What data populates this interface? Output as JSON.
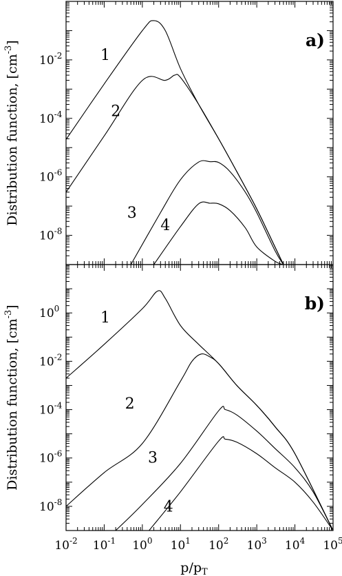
{
  "chart_data": [
    {
      "type": "line",
      "panel_label": "a)",
      "ylabel": "Distribution function, [cm",
      "ylabel_exp": "-3",
      "xscale": "log",
      "yscale": "log",
      "xlim": [
        0.01,
        100000
      ],
      "ylim": [
        1e-09,
        1
      ],
      "ytick_labels": [
        {
          "value": 0.01,
          "base": "10",
          "exp": "-2"
        },
        {
          "value": 0.0001,
          "base": "10",
          "exp": "-4"
        },
        {
          "value": 1e-06,
          "base": "10",
          "exp": "-6"
        },
        {
          "value": 1e-08,
          "base": "10",
          "exp": "-8"
        }
      ],
      "series": [
        {
          "name": "1",
          "points": [
            [
              0.01,
              1.9e-05
            ],
            [
              0.1,
              0.0015
            ],
            [
              1,
              0.1
            ],
            [
              2,
              0.22
            ],
            [
              4,
              0.1
            ],
            [
              10,
              0.005
            ],
            [
              30,
              0.0003
            ],
            [
              100,
              2e-05
            ],
            [
              300,
              1.5e-06
            ],
            [
              1000,
              8e-08
            ],
            [
              3000,
              4e-09
            ],
            [
              5000,
              1e-09
            ]
          ]
        },
        {
          "name": "2",
          "points": [
            [
              0.01,
              3e-07
            ],
            [
              0.1,
              2.5e-05
            ],
            [
              1,
              0.002
            ],
            [
              4,
              0.002
            ],
            [
              7,
              0.003
            ],
            [
              10,
              0.0025
            ],
            [
              30,
              0.0003
            ],
            [
              100,
              2e-05
            ],
            [
              300,
              1.5e-06
            ],
            [
              1000,
              8e-08
            ],
            [
              3000,
              4e-09
            ],
            [
              5000,
              1e-09
            ]
          ]
        },
        {
          "name": "3",
          "points": [
            [
              0.5,
              1e-09
            ],
            [
              3,
              6e-08
            ],
            [
              10,
              8e-07
            ],
            [
              30,
              3.2e-06
            ],
            [
              60,
              3.3e-06
            ],
            [
              100,
              3.1e-06
            ],
            [
              200,
              1.5e-06
            ],
            [
              500,
              3e-07
            ],
            [
              1000,
              6e-08
            ],
            [
              3000,
              3e-09
            ],
            [
              5000,
              1e-09
            ]
          ]
        },
        {
          "name": "4",
          "points": [
            [
              2,
              1e-09
            ],
            [
              10,
              2e-08
            ],
            [
              30,
              1.2e-07
            ],
            [
              60,
              1.25e-07
            ],
            [
              100,
              1.2e-07
            ],
            [
              200,
              7e-08
            ],
            [
              500,
              1.8e-08
            ],
            [
              1000,
              4e-09
            ],
            [
              3000,
              1.3e-09
            ],
            [
              5000,
              1e-09
            ]
          ]
        }
      ],
      "curve_labels": [
        {
          "name": "1",
          "x": 0.08,
          "y": 0.01
        },
        {
          "name": "2",
          "x": 0.15,
          "y": 0.00012
        },
        {
          "name": "3",
          "x": 0.4,
          "y": 4e-08
        },
        {
          "name": "4",
          "x": 3,
          "y": 1.5e-08
        }
      ]
    },
    {
      "type": "line",
      "panel_label": "b)",
      "ylabel": "Distribution function, [cm",
      "ylabel_exp": "-3",
      "xscale": "log",
      "yscale": "log",
      "xlim": [
        0.01,
        100000
      ],
      "ylim": [
        1e-09,
        100
      ],
      "xlabel": "p/p",
      "xlabel_sub": "T",
      "xtick_labels": [
        {
          "value": 0.01,
          "base": "10",
          "exp": "-2"
        },
        {
          "value": 0.1,
          "base": "10",
          "exp": "-1"
        },
        {
          "value": 1,
          "base": "10",
          "exp": "0"
        },
        {
          "value": 10,
          "base": "10",
          "exp": "1"
        },
        {
          "value": 100,
          "base": "10",
          "exp": "2"
        },
        {
          "value": 1000,
          "base": "10",
          "exp": "3"
        },
        {
          "value": 10000,
          "base": "10",
          "exp": "4"
        },
        {
          "value": 100000,
          "base": "10",
          "exp": "5"
        }
      ],
      "ytick_labels": [
        {
          "value": 1,
          "base": "10",
          "exp": "0"
        },
        {
          "value": 0.01,
          "base": "10",
          "exp": "-2"
        },
        {
          "value": 0.0001,
          "base": "10",
          "exp": "-4"
        },
        {
          "value": 1e-06,
          "base": "10",
          "exp": "-6"
        },
        {
          "value": 1e-08,
          "base": "10",
          "exp": "-8"
        }
      ],
      "series": [
        {
          "name": "1",
          "points": [
            [
              0.01,
              0.002
            ],
            [
              0.1,
              0.05
            ],
            [
              1,
              1.5
            ],
            [
              2.5,
              8
            ],
            [
              4,
              4
            ],
            [
              10,
              0.3
            ],
            [
              30,
              0.05
            ],
            [
              100,
              0.008
            ],
            [
              300,
              0.001
            ],
            [
              1000,
              0.00015
            ],
            [
              3000,
              2e-05
            ],
            [
              10000,
              1.5e-06
            ],
            [
              100000,
              1e-09
            ]
          ]
        },
        {
          "name": "2",
          "points": [
            [
              0.01,
              1e-08
            ],
            [
              0.1,
              2.5e-07
            ],
            [
              1,
              4e-06
            ],
            [
              10,
              0.0015
            ],
            [
              20,
              0.01
            ],
            [
              35,
              0.02
            ],
            [
              60,
              0.015
            ],
            [
              100,
              0.008
            ],
            [
              300,
              0.001
            ],
            [
              1000,
              0.00015
            ],
            [
              3000,
              2e-05
            ],
            [
              10000,
              1.5e-06
            ],
            [
              100000,
              1e-09
            ]
          ]
        },
        {
          "name": "3",
          "points": [
            [
              0.2,
              1e-09
            ],
            [
              1,
              1.2e-08
            ],
            [
              10,
              6e-07
            ],
            [
              100,
              9e-05
            ],
            [
              150,
              0.0001
            ],
            [
              300,
              6e-05
            ],
            [
              1000,
              1.3e-05
            ],
            [
              3000,
              2.5e-06
            ],
            [
              10000,
              4e-07
            ],
            [
              30000,
              4e-08
            ],
            [
              100000,
              1e-09
            ]
          ]
        },
        {
          "name": "4",
          "points": [
            [
              1.5,
              1e-09
            ],
            [
              10,
              4e-08
            ],
            [
              100,
              5e-06
            ],
            [
              150,
              6e-06
            ],
            [
              300,
              4.5e-06
            ],
            [
              1000,
              1.5e-06
            ],
            [
              3000,
              4e-07
            ],
            [
              10000,
              1e-07
            ],
            [
              30000,
              1.5e-08
            ],
            [
              100000,
              1e-09
            ]
          ]
        }
      ],
      "curve_labels": [
        {
          "name": "1",
          "x": 0.08,
          "y": 0.4
        },
        {
          "name": "2",
          "x": 0.35,
          "y": 0.00011
        },
        {
          "name": "3",
          "x": 1.4,
          "y": 6.5e-07
        },
        {
          "name": "4",
          "x": 3.6,
          "y": 6e-09
        }
      ]
    }
  ]
}
